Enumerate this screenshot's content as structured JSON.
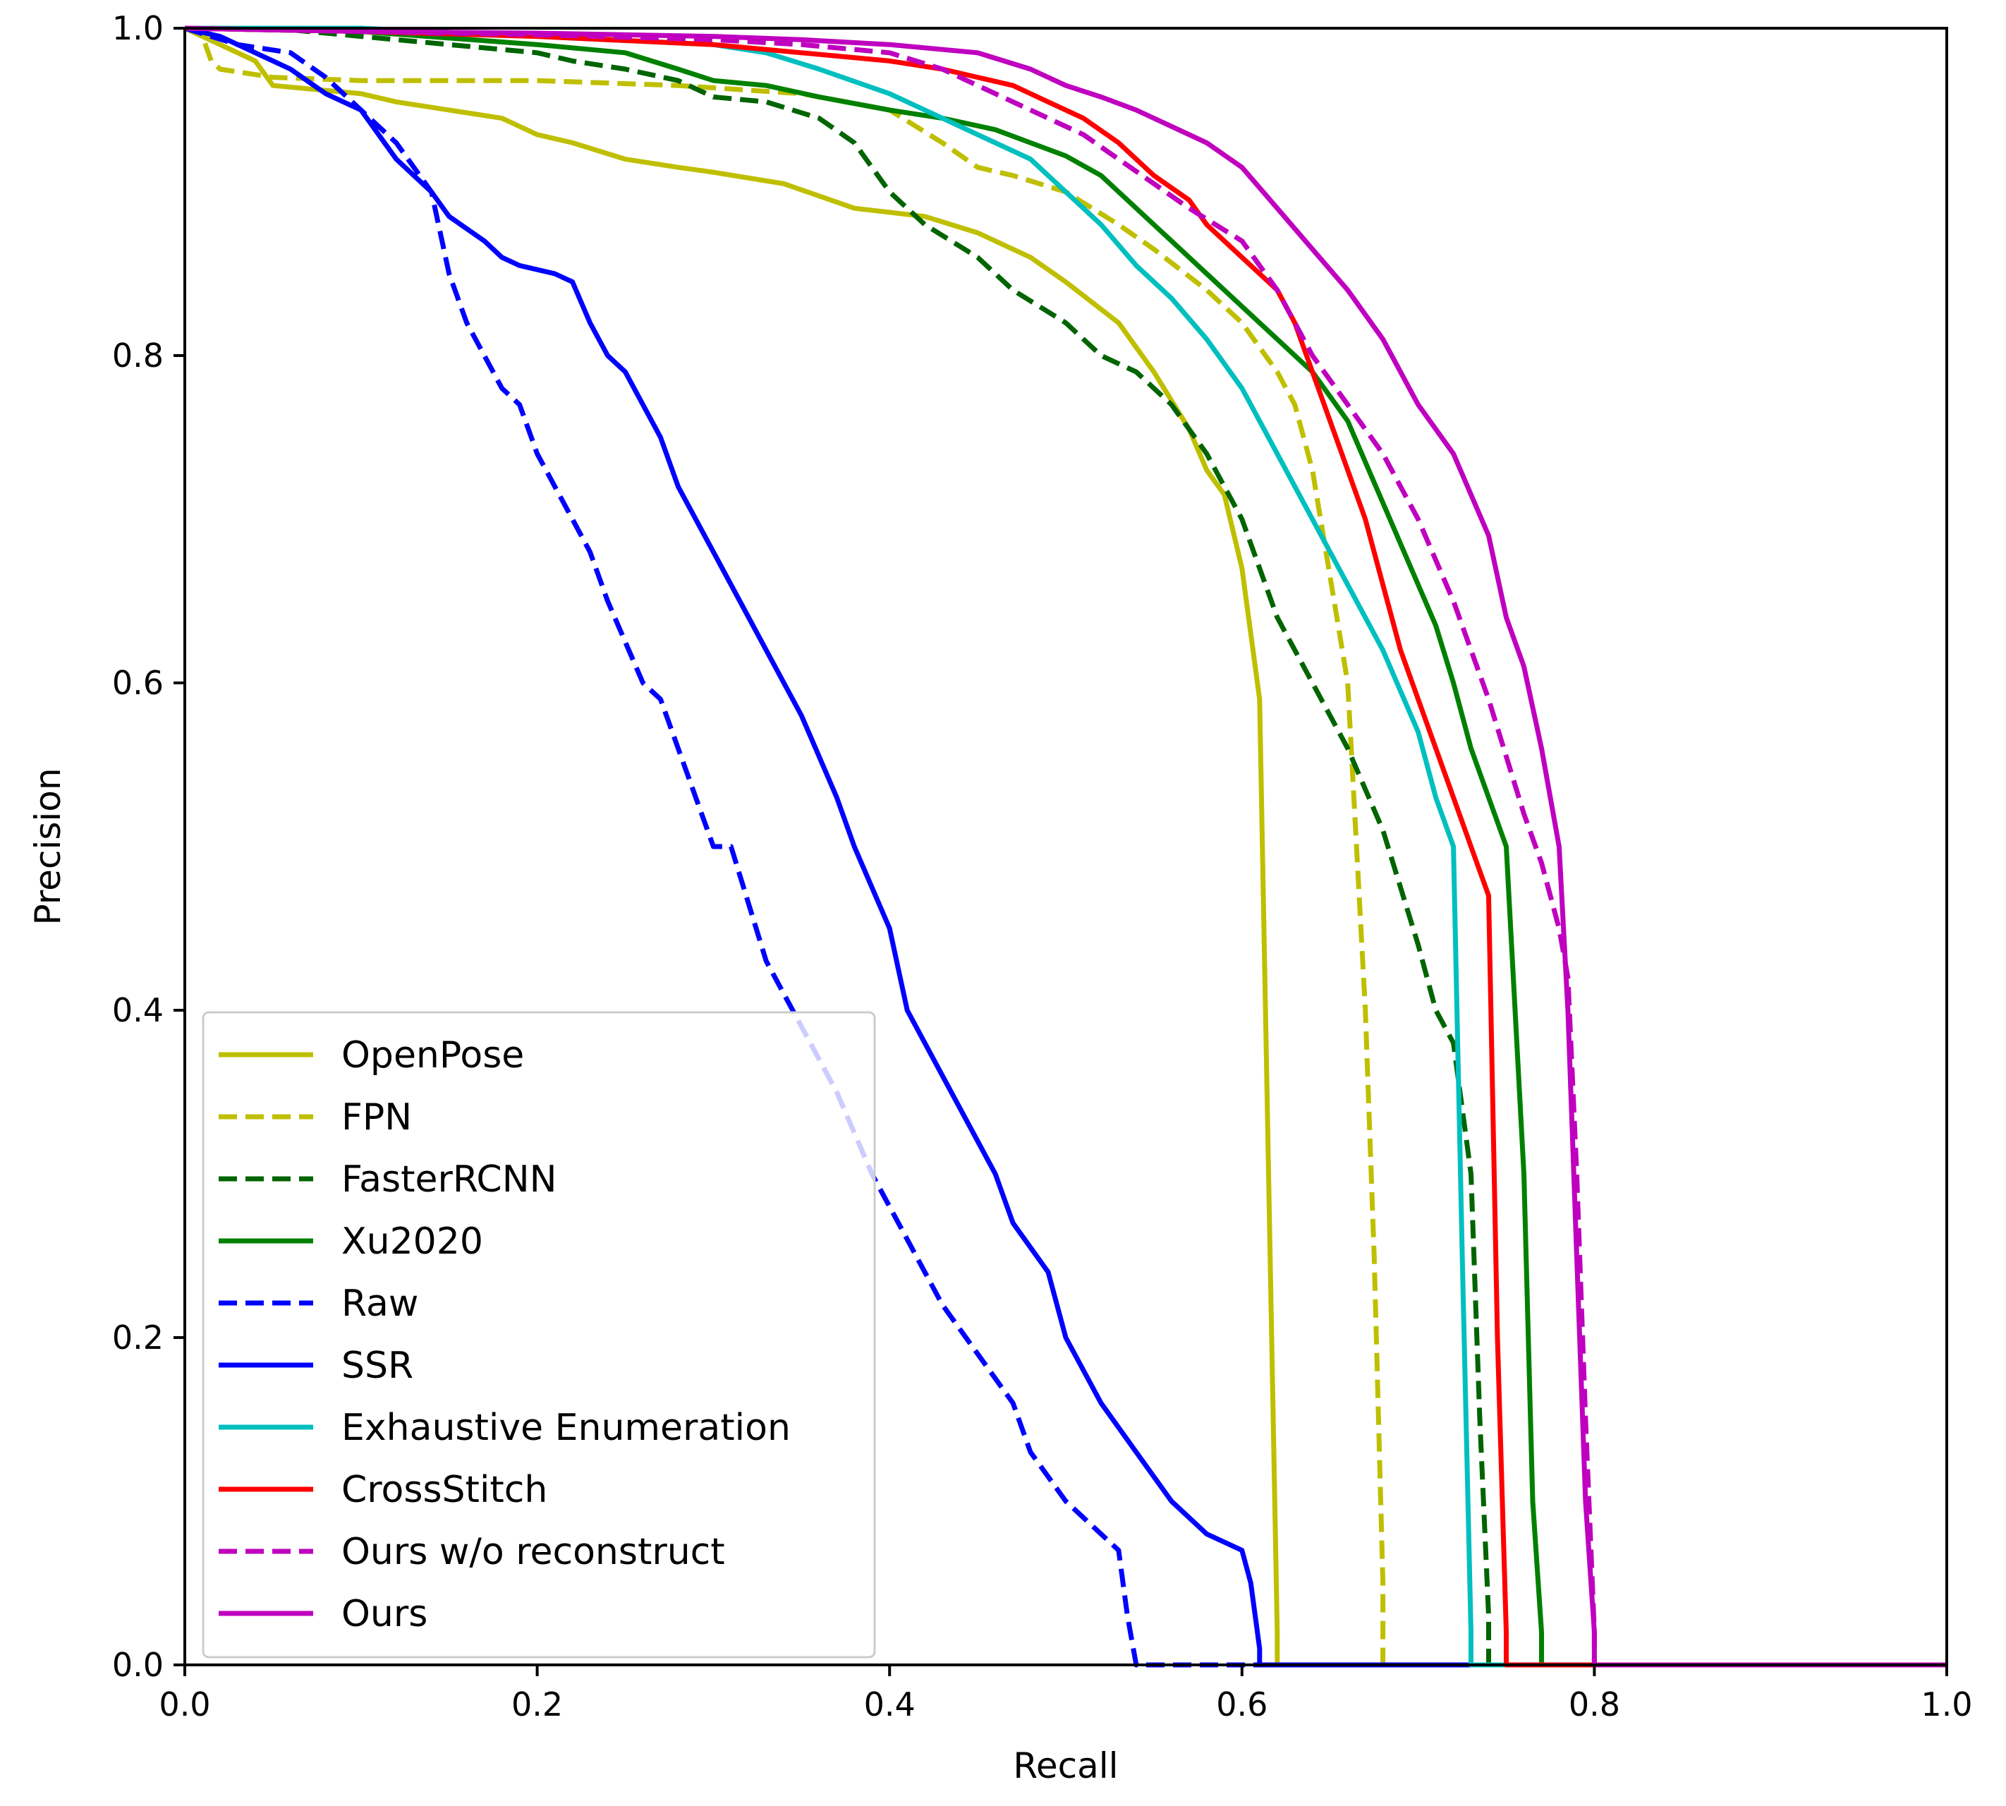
{
  "chart_data": {
    "type": "line",
    "title": "",
    "xlabel": "Recall",
    "ylabel": "Precision",
    "xlim": [
      0.0,
      1.0
    ],
    "ylim": [
      0.0,
      1.0
    ],
    "grid": false,
    "legend_position": "lower-left",
    "xticks": [
      0.0,
      0.2,
      0.4,
      0.6,
      0.8,
      1.0
    ],
    "yticks": [
      0.0,
      0.2,
      0.4,
      0.6,
      0.8,
      1.0
    ],
    "xtick_labels": [
      "0.0",
      "0.2",
      "0.4",
      "0.6",
      "0.8",
      "1.0"
    ],
    "ytick_labels": [
      "0.0",
      "0.2",
      "0.4",
      "0.6",
      "0.8",
      "1.0"
    ],
    "series": [
      {
        "name": "OpenPose",
        "color": "#bfbf00",
        "dash": "solid",
        "x": [
          0.0,
          0.02,
          0.04,
          0.05,
          0.1,
          0.12,
          0.15,
          0.18,
          0.2,
          0.22,
          0.25,
          0.28,
          0.3,
          0.34,
          0.38,
          0.42,
          0.45,
          0.48,
          0.5,
          0.53,
          0.55,
          0.57,
          0.58,
          0.59,
          0.6,
          0.61,
          0.62,
          0.62,
          0.65,
          0.8,
          1.0
        ],
        "y": [
          1.0,
          0.99,
          0.98,
          0.965,
          0.96,
          0.955,
          0.95,
          0.945,
          0.935,
          0.93,
          0.92,
          0.915,
          0.912,
          0.905,
          0.89,
          0.885,
          0.875,
          0.86,
          0.845,
          0.82,
          0.79,
          0.755,
          0.73,
          0.715,
          0.67,
          0.59,
          0.02,
          0.0,
          0.0,
          0.0,
          0.0
        ]
      },
      {
        "name": "FPN",
        "color": "#bfbf00",
        "dash": "dashed",
        "x": [
          0.0,
          0.01,
          0.015,
          0.02,
          0.05,
          0.1,
          0.2,
          0.28,
          0.35,
          0.4,
          0.43,
          0.45,
          0.47,
          0.5,
          0.53,
          0.55,
          0.58,
          0.6,
          0.62,
          0.63,
          0.64,
          0.66,
          0.665,
          0.67,
          0.675,
          0.68,
          0.68,
          1.0
        ],
        "y": [
          1.0,
          0.995,
          0.98,
          0.975,
          0.97,
          0.968,
          0.968,
          0.965,
          0.96,
          0.95,
          0.93,
          0.915,
          0.91,
          0.9,
          0.88,
          0.865,
          0.84,
          0.82,
          0.79,
          0.77,
          0.73,
          0.6,
          0.5,
          0.4,
          0.25,
          0.05,
          0.0,
          0.0
        ]
      },
      {
        "name": "FasterRCNN",
        "color": "#006400",
        "dash": "dashed",
        "x": [
          0.0,
          0.05,
          0.1,
          0.15,
          0.2,
          0.22,
          0.25,
          0.28,
          0.3,
          0.33,
          0.36,
          0.38,
          0.4,
          0.42,
          0.45,
          0.47,
          0.5,
          0.52,
          0.54,
          0.56,
          0.58,
          0.6,
          0.62,
          0.64,
          0.66,
          0.68,
          0.7,
          0.71,
          0.72,
          0.73,
          0.735,
          0.74,
          0.74,
          1.0
        ],
        "y": [
          1.0,
          1.0,
          0.995,
          0.99,
          0.985,
          0.98,
          0.975,
          0.968,
          0.958,
          0.955,
          0.945,
          0.93,
          0.9,
          0.88,
          0.86,
          0.84,
          0.82,
          0.8,
          0.79,
          0.77,
          0.74,
          0.7,
          0.64,
          0.6,
          0.56,
          0.51,
          0.44,
          0.4,
          0.38,
          0.3,
          0.15,
          0.03,
          0.0,
          0.0
        ]
      },
      {
        "name": "Xu2020",
        "color": "#008000",
        "dash": "solid",
        "x": [
          0.0,
          0.1,
          0.2,
          0.25,
          0.28,
          0.3,
          0.33,
          0.36,
          0.4,
          0.43,
          0.46,
          0.48,
          0.5,
          0.52,
          0.54,
          0.56,
          0.58,
          0.6,
          0.62,
          0.64,
          0.66,
          0.68,
          0.7,
          0.71,
          0.72,
          0.73,
          0.74,
          0.75,
          0.76,
          0.765,
          0.77,
          0.77,
          1.0
        ],
        "y": [
          1.0,
          0.998,
          0.99,
          0.985,
          0.975,
          0.968,
          0.965,
          0.958,
          0.95,
          0.945,
          0.938,
          0.93,
          0.922,
          0.91,
          0.89,
          0.87,
          0.85,
          0.83,
          0.81,
          0.79,
          0.76,
          0.71,
          0.66,
          0.635,
          0.6,
          0.56,
          0.53,
          0.5,
          0.3,
          0.1,
          0.02,
          0.0,
          0.0
        ]
      },
      {
        "name": "Raw",
        "color": "#0000ff",
        "dash": "dashed",
        "x": [
          0.0,
          0.03,
          0.06,
          0.08,
          0.1,
          0.12,
          0.14,
          0.15,
          0.16,
          0.18,
          0.19,
          0.2,
          0.22,
          0.23,
          0.24,
          0.26,
          0.27,
          0.29,
          0.3,
          0.31,
          0.33,
          0.35,
          0.37,
          0.39,
          0.41,
          0.43,
          0.45,
          0.47,
          0.48,
          0.5,
          0.52,
          0.53,
          0.535,
          0.54,
          0.6,
          1.0
        ],
        "y": [
          1.0,
          0.99,
          0.985,
          0.97,
          0.95,
          0.93,
          0.9,
          0.85,
          0.82,
          0.78,
          0.77,
          0.74,
          0.7,
          0.68,
          0.65,
          0.6,
          0.59,
          0.53,
          0.5,
          0.5,
          0.43,
          0.39,
          0.35,
          0.3,
          0.26,
          0.22,
          0.19,
          0.16,
          0.13,
          0.1,
          0.08,
          0.07,
          0.03,
          0.0,
          0.0,
          0.0
        ]
      },
      {
        "name": "SSR",
        "color": "#0000ff",
        "dash": "solid",
        "x": [
          0.0,
          0.02,
          0.04,
          0.06,
          0.08,
          0.1,
          0.11,
          0.12,
          0.14,
          0.15,
          0.17,
          0.18,
          0.19,
          0.21,
          0.22,
          0.23,
          0.24,
          0.25,
          0.27,
          0.28,
          0.3,
          0.31,
          0.33,
          0.35,
          0.37,
          0.38,
          0.4,
          0.41,
          0.43,
          0.44,
          0.46,
          0.47,
          0.49,
          0.5,
          0.52,
          0.54,
          0.56,
          0.58,
          0.6,
          0.605,
          0.61,
          0.61,
          1.0
        ],
        "y": [
          1.0,
          0.995,
          0.985,
          0.975,
          0.96,
          0.95,
          0.935,
          0.92,
          0.9,
          0.885,
          0.87,
          0.86,
          0.855,
          0.85,
          0.845,
          0.82,
          0.8,
          0.79,
          0.75,
          0.72,
          0.68,
          0.66,
          0.62,
          0.58,
          0.53,
          0.5,
          0.45,
          0.4,
          0.36,
          0.34,
          0.3,
          0.27,
          0.24,
          0.2,
          0.16,
          0.13,
          0.1,
          0.08,
          0.07,
          0.05,
          0.01,
          0.0,
          0.0
        ]
      },
      {
        "name": "Exhaustive Enumeration",
        "color": "#00bfbf",
        "dash": "solid",
        "x": [
          0.0,
          0.1,
          0.2,
          0.3,
          0.33,
          0.36,
          0.4,
          0.42,
          0.45,
          0.48,
          0.5,
          0.52,
          0.54,
          0.56,
          0.58,
          0.6,
          0.62,
          0.64,
          0.66,
          0.68,
          0.7,
          0.71,
          0.72,
          0.725,
          0.73,
          0.73,
          1.0
        ],
        "y": [
          1.0,
          1.0,
          0.995,
          0.99,
          0.985,
          0.975,
          0.96,
          0.95,
          0.935,
          0.92,
          0.9,
          0.88,
          0.855,
          0.835,
          0.81,
          0.78,
          0.74,
          0.7,
          0.66,
          0.62,
          0.57,
          0.53,
          0.5,
          0.25,
          0.02,
          0.0,
          0.0
        ]
      },
      {
        "name": "CrossStitch",
        "color": "#ff0000",
        "dash": "solid",
        "x": [
          0.0,
          0.1,
          0.2,
          0.3,
          0.35,
          0.4,
          0.43,
          0.45,
          0.47,
          0.49,
          0.51,
          0.53,
          0.55,
          0.57,
          0.58,
          0.6,
          0.62,
          0.63,
          0.64,
          0.65,
          0.66,
          0.67,
          0.68,
          0.69,
          0.7,
          0.71,
          0.72,
          0.73,
          0.74,
          0.745,
          0.75,
          0.75,
          1.0
        ],
        "y": [
          1.0,
          0.998,
          0.995,
          0.99,
          0.985,
          0.98,
          0.975,
          0.97,
          0.965,
          0.955,
          0.945,
          0.93,
          0.91,
          0.895,
          0.88,
          0.86,
          0.84,
          0.82,
          0.79,
          0.76,
          0.73,
          0.7,
          0.66,
          0.62,
          0.59,
          0.56,
          0.53,
          0.5,
          0.47,
          0.2,
          0.02,
          0.0,
          0.0
        ]
      },
      {
        "name": "Ours w/o reconstruct",
        "color": "#bf00bf",
        "dash": "dashed",
        "x": [
          0.0,
          0.1,
          0.2,
          0.3,
          0.35,
          0.4,
          0.43,
          0.45,
          0.47,
          0.49,
          0.51,
          0.53,
          0.55,
          0.57,
          0.6,
          0.62,
          0.64,
          0.66,
          0.68,
          0.7,
          0.72,
          0.74,
          0.76,
          0.77,
          0.78,
          0.785,
          0.79,
          0.795,
          0.8,
          0.8,
          1.0
        ],
        "y": [
          1.0,
          0.998,
          0.996,
          0.993,
          0.99,
          0.985,
          0.975,
          0.965,
          0.955,
          0.945,
          0.935,
          0.92,
          0.905,
          0.89,
          0.87,
          0.84,
          0.8,
          0.77,
          0.74,
          0.7,
          0.65,
          0.59,
          0.52,
          0.49,
          0.45,
          0.42,
          0.3,
          0.15,
          0.02,
          0.0,
          0.0
        ]
      },
      {
        "name": "Ours",
        "color": "#bf00bf",
        "dash": "solid",
        "x": [
          0.0,
          0.1,
          0.2,
          0.3,
          0.35,
          0.4,
          0.45,
          0.48,
          0.5,
          0.52,
          0.54,
          0.56,
          0.58,
          0.6,
          0.62,
          0.64,
          0.66,
          0.68,
          0.7,
          0.72,
          0.74,
          0.75,
          0.76,
          0.77,
          0.78,
          0.785,
          0.79,
          0.795,
          0.8,
          0.8,
          1.0
        ],
        "y": [
          1.0,
          0.998,
          0.997,
          0.995,
          0.993,
          0.99,
          0.985,
          0.975,
          0.965,
          0.958,
          0.95,
          0.94,
          0.93,
          0.915,
          0.89,
          0.865,
          0.84,
          0.81,
          0.77,
          0.74,
          0.69,
          0.64,
          0.61,
          0.56,
          0.5,
          0.4,
          0.25,
          0.1,
          0.02,
          0.0,
          0.0
        ]
      }
    ]
  }
}
